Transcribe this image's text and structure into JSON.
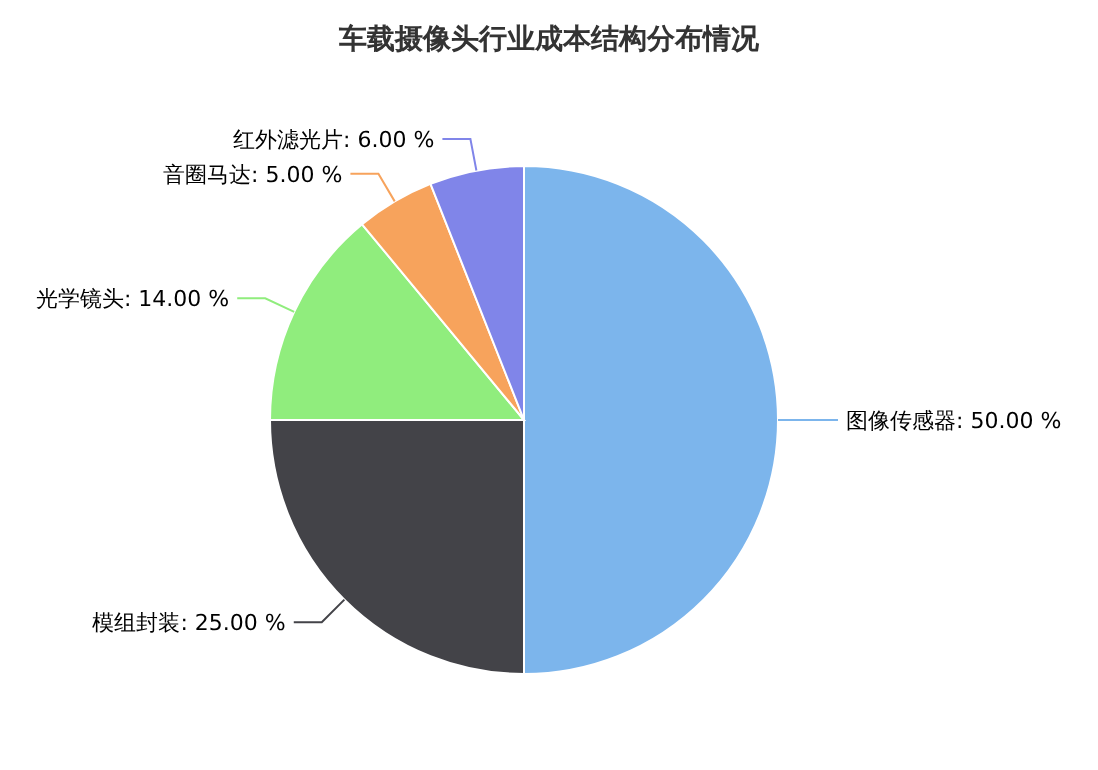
{
  "chart_data": {
    "type": "pie",
    "title": "车载摄像头行业成本结构分布情况",
    "categories": [
      "图像传感器",
      "模组封装",
      "光学镜头",
      "音圈马达",
      "红外滤光片"
    ],
    "values": [
      50,
      25,
      14,
      5,
      6
    ],
    "value_labels": [
      "50.00 %",
      "25.00 %",
      "14.00 %",
      "5.00 %",
      "6.00 %"
    ],
    "colors": [
      "#7cb5ec",
      "#434348",
      "#90ed7d",
      "#f7a35c",
      "#8085e9"
    ]
  }
}
